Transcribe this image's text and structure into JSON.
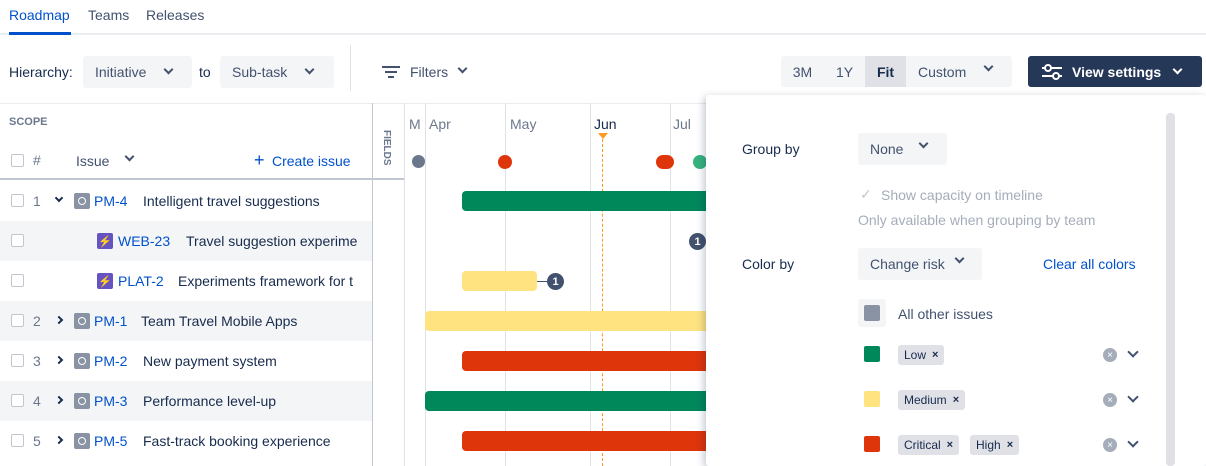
{
  "tabs": [
    {
      "label": "Roadmap",
      "active": true
    },
    {
      "label": "Teams",
      "active": false
    },
    {
      "label": "Releases",
      "active": false
    }
  ],
  "toolbar": {
    "hierarchy_label": "Hierarchy:",
    "hierarchy_from": "Initiative",
    "to_label": "to",
    "hierarchy_to": "Sub-task",
    "filters_label": "Filters",
    "range_options": [
      "3M",
      "1Y",
      "Fit",
      "Custom"
    ],
    "range_selected": "Fit",
    "view_settings_label": "View settings"
  },
  "scope": {
    "title": "SCOPE",
    "hash_label": "#",
    "issue_label": "Issue",
    "create_issue_label": "Create issue",
    "fields_label": "FIELDS"
  },
  "timeline": {
    "months": [
      "M",
      "Apr",
      "May",
      "Jun",
      "Jul"
    ],
    "today_month": "Jun"
  },
  "rows": [
    {
      "num": "1",
      "expanded": true,
      "type": "initiative",
      "key": "PM-4",
      "title": "Intelligent travel suggestions",
      "risk": "Low"
    },
    {
      "num": "",
      "type": "story",
      "key": "WEB-23",
      "title": "Travel suggestion experime",
      "badge": "1"
    },
    {
      "num": "",
      "type": "story",
      "key": "PLAT-2",
      "title": "Experiments framework for t",
      "risk": "Medium",
      "badge": "1"
    },
    {
      "num": "2",
      "expanded": false,
      "type": "initiative",
      "key": "PM-1",
      "title": "Team Travel Mobile Apps",
      "risk": "Medium"
    },
    {
      "num": "3",
      "expanded": false,
      "type": "initiative",
      "key": "PM-2",
      "title": "New payment system",
      "risk": "Critical"
    },
    {
      "num": "4",
      "expanded": false,
      "type": "initiative",
      "key": "PM-3",
      "title": "Performance level-up",
      "risk": "Low"
    },
    {
      "num": "5",
      "expanded": false,
      "type": "initiative",
      "key": "PM-5",
      "title": "Fast-track booking experience",
      "risk": "Critical"
    }
  ],
  "settings": {
    "group_by_label": "Group by",
    "group_by_value": "None",
    "show_capacity_label": "Show capacity on timeline",
    "show_capacity_checked": true,
    "capacity_note": "Only available when grouping by team",
    "color_by_label": "Color by",
    "color_by_value": "Change risk",
    "clear_colors_label": "Clear all colors",
    "other_issues_label": "All other issues",
    "color_rules": [
      {
        "color": "#00875a",
        "tags": [
          "Low"
        ]
      },
      {
        "color": "#ffe380",
        "tags": [
          "Medium"
        ]
      },
      {
        "color": "#de350b",
        "tags": [
          "Critical",
          "High"
        ]
      }
    ]
  },
  "colors": {
    "low": "#00875a",
    "medium": "#ffe380",
    "critical": "#de350b",
    "other": "#8993a4",
    "primary": "#0052cc",
    "today": "#ff991f"
  }
}
